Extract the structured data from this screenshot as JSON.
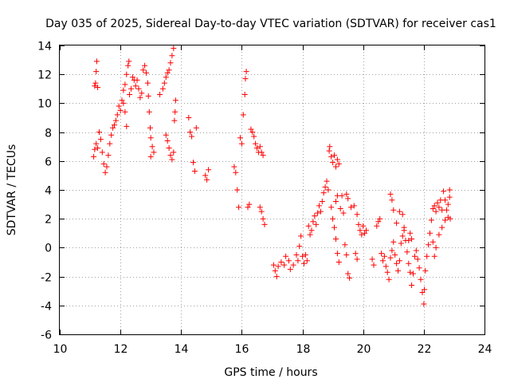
{
  "chart_data": {
    "type": "scatter",
    "title": "Day 035 of 2025, Sidereal Day-to-day VTEC variation (SDTVAR) for receiver cas1",
    "xlabel": "GPS time / hours",
    "ylabel": "SDTVAR / TECUs",
    "xlim": [
      10,
      24
    ],
    "ylim": [
      -6,
      14
    ],
    "xticks": [
      "10",
      "12",
      "14",
      "16",
      "18",
      "20",
      "22",
      "24"
    ],
    "yticks": [
      "-6",
      "-4",
      "-2",
      "0",
      "2",
      "4",
      "6",
      "8",
      "10",
      "12",
      "14"
    ],
    "grid": true,
    "marker": "+",
    "series": [
      {
        "name": "SDTVAR",
        "color": "#ff0000",
        "points": [
          [
            11.15,
            11.2
          ],
          [
            11.18,
            11.4
          ],
          [
            11.2,
            12.2
          ],
          [
            11.22,
            12.9
          ],
          [
            11.25,
            11.1
          ],
          [
            11.12,
            6.3
          ],
          [
            11.15,
            6.8
          ],
          [
            11.2,
            7.2
          ],
          [
            11.25,
            6.9
          ],
          [
            11.3,
            8.0
          ],
          [
            11.35,
            7.5
          ],
          [
            11.4,
            6.6
          ],
          [
            11.45,
            5.8
          ],
          [
            11.5,
            5.2
          ],
          [
            11.55,
            5.6
          ],
          [
            11.6,
            6.4
          ],
          [
            11.65,
            7.2
          ],
          [
            11.7,
            7.8
          ],
          [
            11.75,
            8.3
          ],
          [
            11.8,
            8.5
          ],
          [
            11.85,
            8.8
          ],
          [
            11.9,
            9.2
          ],
          [
            11.95,
            9.8
          ],
          [
            12.0,
            9.5
          ],
          [
            12.05,
            10.2
          ],
          [
            12.1,
            10.9
          ],
          [
            12.15,
            11.3
          ],
          [
            12.2,
            12.0
          ],
          [
            12.25,
            12.6
          ],
          [
            12.28,
            12.9
          ],
          [
            12.1,
            10.0
          ],
          [
            12.15,
            9.4
          ],
          [
            12.2,
            8.4
          ],
          [
            12.3,
            10.6
          ],
          [
            12.35,
            11.0
          ],
          [
            12.4,
            11.8
          ],
          [
            12.45,
            11.6
          ],
          [
            12.5,
            11.2
          ],
          [
            12.55,
            11.6
          ],
          [
            12.6,
            11.0
          ],
          [
            12.65,
            10.4
          ],
          [
            12.7,
            10.7
          ],
          [
            12.75,
            12.3
          ],
          [
            12.8,
            12.6
          ],
          [
            12.85,
            12.1
          ],
          [
            12.9,
            11.4
          ],
          [
            12.92,
            10.5
          ],
          [
            12.95,
            9.4
          ],
          [
            12.98,
            8.3
          ],
          [
            13.0,
            7.6
          ],
          [
            13.05,
            7.0
          ],
          [
            13.1,
            6.6
          ],
          [
            13.0,
            6.3
          ],
          [
            13.3,
            10.6
          ],
          [
            13.4,
            11.0
          ],
          [
            13.45,
            11.4
          ],
          [
            13.5,
            11.8
          ],
          [
            13.55,
            12.1
          ],
          [
            13.6,
            12.3
          ],
          [
            13.65,
            12.8
          ],
          [
            13.7,
            13.3
          ],
          [
            13.75,
            13.8
          ],
          [
            13.5,
            7.8
          ],
          [
            13.55,
            7.4
          ],
          [
            13.6,
            6.9
          ],
          [
            13.65,
            6.4
          ],
          [
            13.7,
            6.1
          ],
          [
            13.75,
            6.6
          ],
          [
            13.78,
            8.8
          ],
          [
            13.8,
            9.4
          ],
          [
            13.82,
            10.2
          ],
          [
            14.25,
            9.0
          ],
          [
            14.3,
            8.0
          ],
          [
            14.35,
            7.7
          ],
          [
            14.4,
            5.9
          ],
          [
            14.45,
            5.3
          ],
          [
            14.5,
            8.3
          ],
          [
            14.8,
            5.0
          ],
          [
            14.85,
            4.7
          ],
          [
            14.9,
            5.4
          ],
          [
            15.75,
            5.6
          ],
          [
            15.8,
            5.2
          ],
          [
            15.85,
            4.0
          ],
          [
            15.9,
            2.8
          ],
          [
            15.95,
            7.6
          ],
          [
            16.0,
            7.2
          ],
          [
            16.05,
            9.2
          ],
          [
            16.1,
            10.6
          ],
          [
            16.12,
            11.7
          ],
          [
            16.15,
            12.2
          ],
          [
            16.2,
            2.8
          ],
          [
            16.25,
            3.0
          ],
          [
            16.3,
            8.2
          ],
          [
            16.35,
            8.0
          ],
          [
            16.4,
            7.7
          ],
          [
            16.45,
            7.2
          ],
          [
            16.5,
            6.9
          ],
          [
            16.55,
            6.6
          ],
          [
            16.6,
            7.0
          ],
          [
            16.65,
            6.6
          ],
          [
            16.7,
            6.4
          ],
          [
            16.6,
            2.8
          ],
          [
            16.65,
            2.5
          ],
          [
            16.7,
            2.0
          ],
          [
            16.75,
            1.6
          ],
          [
            17.05,
            -1.2
          ],
          [
            17.1,
            -1.6
          ],
          [
            17.15,
            -2.0
          ],
          [
            17.2,
            -1.3
          ],
          [
            17.3,
            -1.0
          ],
          [
            17.4,
            -1.2
          ],
          [
            17.45,
            -0.6
          ],
          [
            17.55,
            -0.9
          ],
          [
            17.6,
            -1.5
          ],
          [
            17.7,
            -1.2
          ],
          [
            17.8,
            -0.5
          ],
          [
            17.85,
            -0.9
          ],
          [
            17.9,
            0.1
          ],
          [
            17.95,
            0.8
          ],
          [
            18.0,
            -0.6
          ],
          [
            18.05,
            -1.1
          ],
          [
            18.1,
            -0.5
          ],
          [
            18.15,
            -0.9
          ],
          [
            18.2,
            1.5
          ],
          [
            18.25,
            0.9
          ],
          [
            18.3,
            1.2
          ],
          [
            18.35,
            1.8
          ],
          [
            18.4,
            2.2
          ],
          [
            18.45,
            1.6
          ],
          [
            18.5,
            2.4
          ],
          [
            18.55,
            2.9
          ],
          [
            18.6,
            2.5
          ],
          [
            18.65,
            3.2
          ],
          [
            18.7,
            3.8
          ],
          [
            18.75,
            4.2
          ],
          [
            18.8,
            4.6
          ],
          [
            18.85,
            4.0
          ],
          [
            18.88,
            6.7
          ],
          [
            18.9,
            7.0
          ],
          [
            18.95,
            6.3
          ],
          [
            19.0,
            5.9
          ],
          [
            19.05,
            6.4
          ],
          [
            19.1,
            5.6
          ],
          [
            19.15,
            6.1
          ],
          [
            19.2,
            5.8
          ],
          [
            18.95,
            2.8
          ],
          [
            19.0,
            2.0
          ],
          [
            19.05,
            1.4
          ],
          [
            19.1,
            0.6
          ],
          [
            19.15,
            -0.4
          ],
          [
            19.2,
            -1.0
          ],
          [
            19.25,
            2.7
          ],
          [
            19.3,
            3.6
          ],
          [
            19.35,
            2.4
          ],
          [
            19.4,
            0.2
          ],
          [
            19.45,
            -0.5
          ],
          [
            19.5,
            -1.8
          ],
          [
            19.55,
            -2.1
          ],
          [
            19.1,
            3.2
          ],
          [
            19.15,
            3.6
          ],
          [
            19.45,
            3.7
          ],
          [
            19.5,
            3.4
          ],
          [
            19.6,
            2.8
          ],
          [
            19.7,
            2.9
          ],
          [
            19.8,
            2.3
          ],
          [
            19.85,
            1.6
          ],
          [
            19.9,
            1.2
          ],
          [
            19.95,
            0.9
          ],
          [
            20.0,
            1.5
          ],
          [
            20.05,
            1.0
          ],
          [
            20.1,
            1.2
          ],
          [
            19.75,
            -0.4
          ],
          [
            19.8,
            -0.8
          ],
          [
            20.3,
            -0.8
          ],
          [
            20.35,
            -1.2
          ],
          [
            20.45,
            1.5
          ],
          [
            20.5,
            1.8
          ],
          [
            20.55,
            2.0
          ],
          [
            20.6,
            -0.4
          ],
          [
            20.65,
            -0.9
          ],
          [
            20.7,
            -0.6
          ],
          [
            20.75,
            -1.3
          ],
          [
            20.8,
            -1.7
          ],
          [
            20.85,
            -2.2
          ],
          [
            20.9,
            -0.7
          ],
          [
            20.95,
            -0.2
          ],
          [
            21.0,
            0.4
          ],
          [
            21.05,
            -0.5
          ],
          [
            21.1,
            -1.1
          ],
          [
            21.15,
            -1.6
          ],
          [
            21.2,
            -0.9
          ],
          [
            21.25,
            0.3
          ],
          [
            21.3,
            0.8
          ],
          [
            21.35,
            1.2
          ],
          [
            21.4,
            0.5
          ],
          [
            21.45,
            -0.3
          ],
          [
            21.5,
            -1.1
          ],
          [
            21.55,
            -1.7
          ],
          [
            21.6,
            -2.6
          ],
          [
            21.65,
            -1.8
          ],
          [
            21.7,
            -0.6
          ],
          [
            21.75,
            -0.2
          ],
          [
            20.9,
            3.7
          ],
          [
            20.95,
            3.3
          ],
          [
            21.0,
            2.6
          ],
          [
            21.1,
            1.7
          ],
          [
            21.2,
            2.5
          ],
          [
            21.3,
            2.3
          ],
          [
            21.35,
            1.4
          ],
          [
            21.5,
            0.5
          ],
          [
            21.55,
            1.0
          ],
          [
            21.6,
            0.6
          ],
          [
            21.8,
            -0.8
          ],
          [
            21.85,
            -1.4
          ],
          [
            21.9,
            -2.2
          ],
          [
            21.95,
            -3.1
          ],
          [
            22.0,
            -3.9
          ],
          [
            22.02,
            -2.9
          ],
          [
            22.05,
            -1.6
          ],
          [
            22.1,
            -0.6
          ],
          [
            22.15,
            0.2
          ],
          [
            22.2,
            1.0
          ],
          [
            22.25,
            1.9
          ],
          [
            22.3,
            2.7
          ],
          [
            22.35,
            2.9
          ],
          [
            22.4,
            2.5
          ],
          [
            22.45,
            3.1
          ],
          [
            22.5,
            2.8
          ],
          [
            22.55,
            3.3
          ],
          [
            22.6,
            2.6
          ],
          [
            22.65,
            3.9
          ],
          [
            22.7,
            3.3
          ],
          [
            22.75,
            2.6
          ],
          [
            22.8,
            2.1
          ],
          [
            22.85,
            3.5
          ],
          [
            22.87,
            2.0
          ],
          [
            22.3,
            0.4
          ],
          [
            22.35,
            -0.6
          ],
          [
            22.4,
            0.0
          ],
          [
            22.5,
            0.9
          ],
          [
            22.6,
            1.4
          ],
          [
            22.7,
            1.9
          ],
          [
            22.8,
            3.0
          ],
          [
            22.85,
            4.0
          ]
        ]
      }
    ]
  }
}
